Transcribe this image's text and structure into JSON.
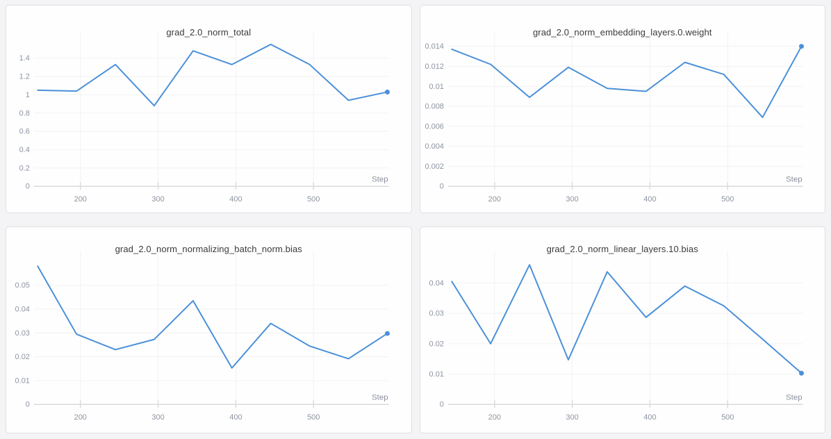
{
  "page": {
    "background_color": "#f4f4f6",
    "card_border_color": "#dfdfe2",
    "card_background": "#fefefe"
  },
  "style": {
    "line_color": "#4a90d9",
    "grid_color": "#f2f2f3",
    "axis_color": "#d9d9dc",
    "tick_mark_color": "#dcdcdf",
    "tick_text_color": "#8d93a0",
    "title_color": "#3a3a3a",
    "end_marker": "dot"
  },
  "chart_data": [
    {
      "type": "line",
      "title": "grad_2.0_norm_total",
      "xlabel": "Step",
      "ylabel": "",
      "x": [
        145,
        195,
        245,
        295,
        345,
        395,
        445,
        495,
        545,
        595
      ],
      "values": [
        1.05,
        1.04,
        1.33,
        0.88,
        1.48,
        1.33,
        1.55,
        1.33,
        0.94,
        1.03
      ],
      "x_domain": [
        142,
        596
      ],
      "y_domain": [
        0,
        1.575
      ],
      "x_ticks": {
        "values": [
          200,
          300,
          400,
          500
        ],
        "labels": [
          "200",
          "300",
          "400",
          "500"
        ]
      },
      "y_ticks": {
        "values": [
          0,
          0.2,
          0.4,
          0.6,
          0.8,
          1,
          1.2,
          1.4
        ],
        "labels": [
          "0",
          "0.2",
          "0.4",
          "0.6",
          "0.8",
          "1",
          "1.2",
          "1.4"
        ]
      },
      "grid": true,
      "legend": "none"
    },
    {
      "type": "line",
      "title": "grad_2.0_norm_embedding_layers.0.weight",
      "xlabel": "Step",
      "ylabel": "",
      "x": [
        145,
        195,
        245,
        295,
        345,
        395,
        445,
        495,
        545,
        595
      ],
      "values": [
        0.0137,
        0.0122,
        0.0089,
        0.0119,
        0.0098,
        0.0095,
        0.0124,
        0.0112,
        0.0069,
        0.014
      ],
      "x_domain": [
        142,
        596
      ],
      "y_domain": [
        0,
        0.01442
      ],
      "x_ticks": {
        "values": [
          200,
          300,
          400,
          500
        ],
        "labels": [
          "200",
          "300",
          "400",
          "500"
        ]
      },
      "y_ticks": {
        "values": [
          0,
          0.002,
          0.004,
          0.006,
          0.008,
          0.01,
          0.012,
          0.014
        ],
        "labels": [
          "0",
          "0.002",
          "0.004",
          "0.006",
          "0.008",
          "0.01",
          "0.012",
          "0.014"
        ]
      },
      "grid": true,
      "legend": "none"
    },
    {
      "type": "line",
      "title": "grad_2.0_norm_normalizing_batch_norm.bias",
      "xlabel": "Step",
      "ylabel": "",
      "x": [
        145,
        195,
        245,
        295,
        345,
        395,
        445,
        495,
        545,
        595
      ],
      "values": [
        0.058,
        0.0295,
        0.023,
        0.0273,
        0.0435,
        0.0153,
        0.034,
        0.0245,
        0.0192,
        0.0298
      ],
      "x_domain": [
        142,
        596
      ],
      "y_domain": [
        0,
        0.0605
      ],
      "x_ticks": {
        "values": [
          200,
          300,
          400,
          500
        ],
        "labels": [
          "200",
          "300",
          "400",
          "500"
        ]
      },
      "y_ticks": {
        "values": [
          0,
          0.01,
          0.02,
          0.03,
          0.04,
          0.05
        ],
        "labels": [
          "0",
          "0.01",
          "0.02",
          "0.03",
          "0.04",
          "0.05"
        ]
      },
      "grid": true,
      "legend": "none"
    },
    {
      "type": "line",
      "title": "grad_2.0_norm_linear_layers.10.bias",
      "xlabel": "Step",
      "ylabel": "",
      "x": [
        145,
        195,
        245,
        295,
        345,
        395,
        445,
        495,
        545,
        595
      ],
      "values": [
        0.0405,
        0.02,
        0.046,
        0.0147,
        0.0437,
        0.0287,
        0.039,
        0.0325,
        0.0215,
        0.0103
      ],
      "x_domain": [
        142,
        596
      ],
      "y_domain": [
        0,
        0.0475
      ],
      "x_ticks": {
        "values": [
          200,
          300,
          400,
          500
        ],
        "labels": [
          "200",
          "300",
          "400",
          "500"
        ]
      },
      "y_ticks": {
        "values": [
          0,
          0.01,
          0.02,
          0.03,
          0.04
        ],
        "labels": [
          "0",
          "0.01",
          "0.02",
          "0.03",
          "0.04"
        ]
      },
      "grid": true,
      "legend": "none"
    }
  ]
}
